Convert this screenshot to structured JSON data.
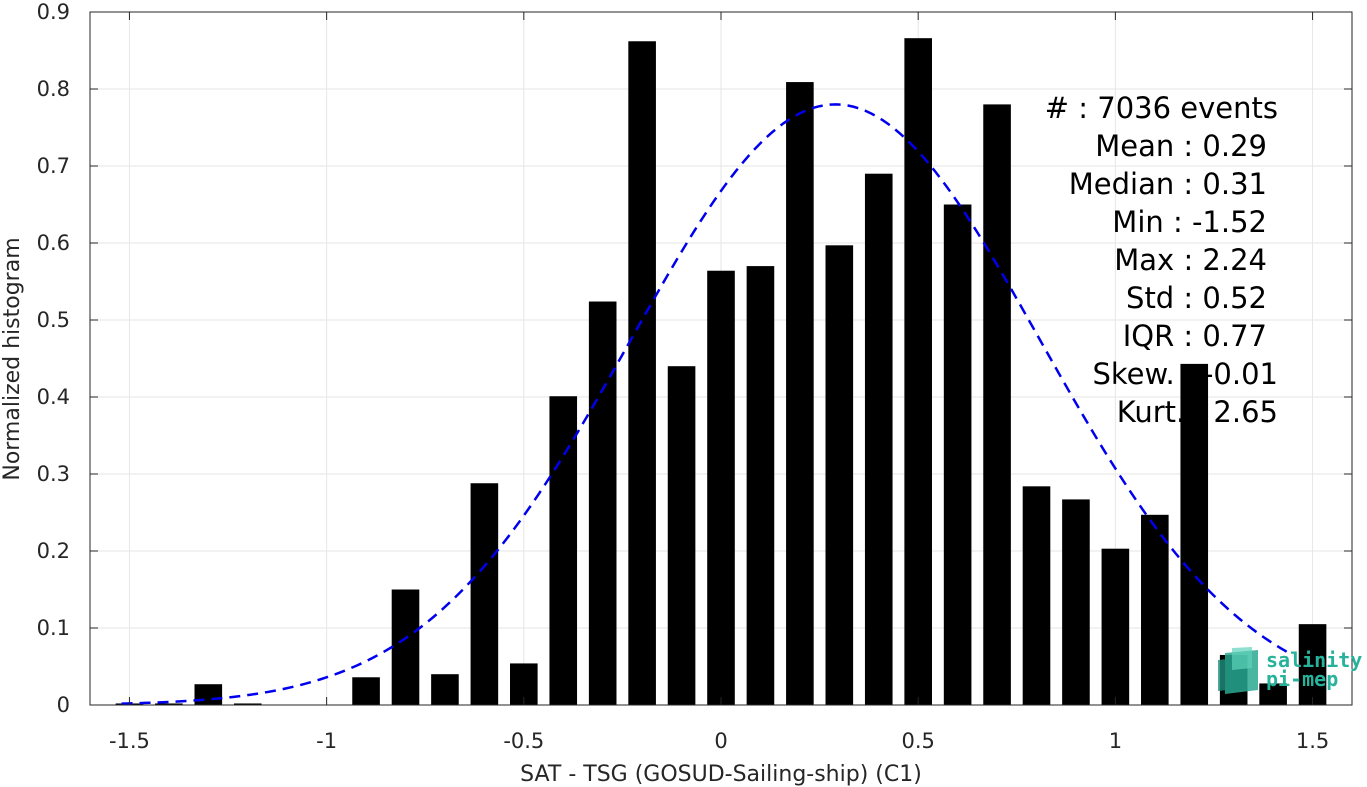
{
  "chart_data": {
    "type": "bar",
    "xlabel": "SAT - TSG (GOSUD-Sailing-ship) (C1)",
    "ylabel": "Normalized histogram",
    "xlim": [
      -1.6,
      1.6
    ],
    "ylim": [
      0,
      0.9
    ],
    "grid": true,
    "x_ticks": [
      -1.5,
      -1,
      -0.5,
      0,
      0.5,
      1,
      1.5
    ],
    "x_tick_labels": [
      "-1.5",
      "-1",
      "-0.5",
      "0",
      "0.5",
      "1",
      "1.5"
    ],
    "y_ticks": [
      0,
      0.1,
      0.2,
      0.3,
      0.4,
      0.5,
      0.6,
      0.7,
      0.8,
      0.9
    ],
    "y_tick_labels": [
      "0",
      "0.1",
      "0.2",
      "0.3",
      "0.4",
      "0.5",
      "0.6",
      "0.7",
      "0.8",
      "0.9"
    ],
    "bar_width": 0.07,
    "bar_color": "#000000",
    "bars": [
      {
        "x": -1.5,
        "y": 0.002
      },
      {
        "x": -1.4,
        "y": 0.002
      },
      {
        "x": -1.3,
        "y": 0.027
      },
      {
        "x": -1.2,
        "y": 0.002
      },
      {
        "x": -1.1,
        "y": 0.0
      },
      {
        "x": -1.0,
        "y": 0.0
      },
      {
        "x": -0.9,
        "y": 0.036
      },
      {
        "x": -0.8,
        "y": 0.15
      },
      {
        "x": -0.7,
        "y": 0.04
      },
      {
        "x": -0.6,
        "y": 0.288
      },
      {
        "x": -0.5,
        "y": 0.054
      },
      {
        "x": -0.4,
        "y": 0.401
      },
      {
        "x": -0.3,
        "y": 0.524
      },
      {
        "x": -0.2,
        "y": 0.862
      },
      {
        "x": -0.1,
        "y": 0.44
      },
      {
        "x": 0.0,
        "y": 0.564
      },
      {
        "x": 0.1,
        "y": 0.57
      },
      {
        "x": 0.2,
        "y": 0.809
      },
      {
        "x": 0.3,
        "y": 0.597
      },
      {
        "x": 0.4,
        "y": 0.69
      },
      {
        "x": 0.5,
        "y": 0.866
      },
      {
        "x": 0.6,
        "y": 0.65
      },
      {
        "x": 0.7,
        "y": 0.78
      },
      {
        "x": 0.8,
        "y": 0.284
      },
      {
        "x": 0.9,
        "y": 0.267
      },
      {
        "x": 1.0,
        "y": 0.203
      },
      {
        "x": 1.1,
        "y": 0.247
      },
      {
        "x": 1.2,
        "y": 0.443
      },
      {
        "x": 1.3,
        "y": 0.065
      },
      {
        "x": 1.4,
        "y": 0.028
      },
      {
        "x": 1.5,
        "y": 0.105
      }
    ],
    "fit_curve": {
      "style": "dashed",
      "color": "#0000ee",
      "mean": 0.29,
      "std": 0.52,
      "peak": 0.78,
      "x_range": [
        -1.52,
        1.45
      ]
    },
    "stats_lines": [
      "#  : 7036 events",
      "Mean : 0.29",
      "Median : 0.31",
      "Min : -1.52",
      "Max : 2.24",
      "Std : 0.52",
      "IQR : 0.77",
      "Skew. : -0.01",
      "Kurt. : 2.65"
    ]
  },
  "logo": {
    "name": "salinity-pi-mep-logo",
    "line1": "salinity",
    "line2": "pi-mep",
    "color": "#27b39b"
  }
}
